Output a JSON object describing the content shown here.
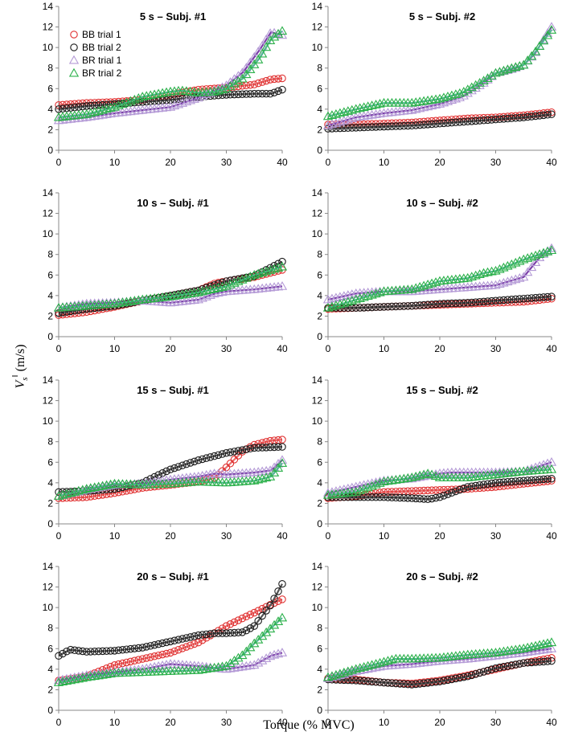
{
  "chart_data": {
    "type": "scatter",
    "xlabel": "Torque (% MVC)",
    "ylabel": "V_s^‖ (m/s)",
    "ylabel_main": "V",
    "ylabel_sub": "s",
    "ylabel_sup": "‖",
    "ylabel_unit": "(m/s)",
    "xlim": [
      0,
      40
    ],
    "ylim": [
      0,
      14
    ],
    "xticks": [
      "0",
      "10",
      "20",
      "30",
      "40"
    ],
    "yticks": [
      "0",
      "2",
      "4",
      "6",
      "8",
      "10",
      "12",
      "14"
    ],
    "legend": [
      {
        "label": "BB trial 1",
        "marker": "circle",
        "color": "#e03030"
      },
      {
        "label": "BB trial 2",
        "marker": "circle",
        "color": "#1a1a1a"
      },
      {
        "label": "BR trial 1",
        "marker": "triangle",
        "color": "#b49ad6"
      },
      {
        "label": "BR trial 2",
        "marker": "triangle",
        "color": "#2bb04a"
      }
    ],
    "series_styles": [
      {
        "name": "BB trial 1",
        "marker": "circle",
        "color": "#e03030",
        "line": "#e87070"
      },
      {
        "name": "BB trial 2",
        "marker": "circle",
        "color": "#1a1a1a",
        "line": "#555555"
      },
      {
        "name": "BR trial 1",
        "marker": "triangle",
        "color": "#b49ad6",
        "line": "#7b3fa8"
      },
      {
        "name": "BR trial 2",
        "marker": "triangle",
        "color": "#2bb04a",
        "line": "#50b890"
      }
    ],
    "panels": [
      {
        "title": "5 s – Subj. #1",
        "series": [
          {
            "name": "BB trial 1",
            "x": [
              0,
              5,
              10,
              15,
              20,
              25,
              30,
              35,
              38,
              40
            ],
            "y": [
              4.4,
              4.6,
              4.7,
              4.9,
              5.4,
              5.9,
              6.1,
              6.4,
              6.9,
              7.0
            ]
          },
          {
            "name": "BB trial 2",
            "x": [
              0,
              5,
              10,
              15,
              20,
              25,
              30,
              35,
              38,
              40
            ],
            "y": [
              4.0,
              4.3,
              4.5,
              4.7,
              4.9,
              5.2,
              5.4,
              5.5,
              5.5,
              5.9
            ]
          },
          {
            "name": "BR trial 1",
            "x": [
              0,
              5,
              10,
              15,
              20,
              25,
              28,
              30,
              33,
              36,
              38,
              40
            ],
            "y": [
              2.9,
              3.2,
              3.6,
              3.9,
              4.2,
              5.1,
              5.8,
              6.3,
              7.6,
              9.8,
              11.5,
              11.2
            ]
          },
          {
            "name": "BR trial 2",
            "x": [
              0,
              5,
              10,
              15,
              20,
              22,
              25,
              28,
              30,
              33,
              36,
              38,
              40
            ],
            "y": [
              3.2,
              3.5,
              4.2,
              5.2,
              5.7,
              5.8,
              5.6,
              5.7,
              6.0,
              7.0,
              9.0,
              10.8,
              11.6
            ]
          }
        ]
      },
      {
        "title": "5 s – Subj. #2",
        "series": [
          {
            "name": "BB trial 1",
            "x": [
              0,
              5,
              10,
              15,
              20,
              25,
              30,
              35,
              40
            ],
            "y": [
              2.5,
              2.5,
              2.6,
              2.7,
              2.9,
              3.1,
              3.2,
              3.4,
              3.7
            ]
          },
          {
            "name": "BB trial 2",
            "x": [
              0,
              5,
              10,
              15,
              20,
              25,
              30,
              35,
              40
            ],
            "y": [
              2.1,
              2.2,
              2.3,
              2.4,
              2.6,
              2.8,
              3.0,
              3.2,
              3.5
            ]
          },
          {
            "name": "BR trial 1",
            "x": [
              0,
              5,
              10,
              15,
              20,
              24,
              28,
              30,
              33,
              35,
              37,
              40
            ],
            "y": [
              2.4,
              3.2,
              3.6,
              3.9,
              4.5,
              5.2,
              6.6,
              7.5,
              7.9,
              8.3,
              9.4,
              12.0
            ]
          },
          {
            "name": "BR trial 2",
            "x": [
              0,
              5,
              10,
              15,
              20,
              24,
              28,
              30,
              33,
              35,
              37,
              40
            ],
            "y": [
              3.3,
              4.0,
              4.6,
              4.6,
              5.0,
              5.6,
              6.8,
              7.5,
              8.0,
              8.3,
              9.5,
              11.7
            ]
          }
        ]
      },
      {
        "title": "10 s – Subj. #1",
        "series": [
          {
            "name": "BB trial 1",
            "x": [
              0,
              5,
              10,
              15,
              20,
              25,
              28,
              30,
              35,
              40
            ],
            "y": [
              2.1,
              2.4,
              2.9,
              3.5,
              4.0,
              4.5,
              5.2,
              5.4,
              5.8,
              6.5
            ]
          },
          {
            "name": "BB trial 2",
            "x": [
              0,
              5,
              10,
              15,
              20,
              25,
              30,
              35,
              40
            ],
            "y": [
              2.3,
              2.7,
              3.0,
              3.5,
              4.0,
              4.5,
              5.4,
              5.9,
              7.3
            ]
          },
          {
            "name": "BR trial 1",
            "x": [
              0,
              5,
              10,
              15,
              20,
              25,
              28,
              30,
              35,
              40
            ],
            "y": [
              2.8,
              3.2,
              3.3,
              3.5,
              3.3,
              3.6,
              4.2,
              4.4,
              4.6,
              4.9
            ]
          },
          {
            "name": "BR trial 2",
            "x": [
              0,
              5,
              10,
              15,
              20,
              25,
              30,
              35,
              40
            ],
            "y": [
              2.8,
              3.0,
              3.2,
              3.6,
              3.9,
              4.3,
              4.9,
              6.0,
              6.8
            ]
          }
        ]
      },
      {
        "title": "10 s – Subj. #2",
        "series": [
          {
            "name": "BB trial 1",
            "x": [
              0,
              5,
              10,
              15,
              20,
              25,
              30,
              35,
              40
            ],
            "y": [
              2.7,
              2.8,
              2.9,
              3.0,
              3.1,
              3.2,
              3.3,
              3.4,
              3.7
            ]
          },
          {
            "name": "BB trial 2",
            "x": [
              0,
              5,
              10,
              15,
              20,
              25,
              30,
              35,
              40
            ],
            "y": [
              2.8,
              2.8,
              2.9,
              3.0,
              3.2,
              3.3,
              3.5,
              3.7,
              3.9
            ]
          },
          {
            "name": "BR trial 1",
            "x": [
              0,
              5,
              10,
              15,
              20,
              25,
              30,
              35,
              38,
              40
            ],
            "y": [
              3.6,
              4.2,
              4.4,
              4.4,
              4.6,
              4.8,
              5.0,
              5.8,
              7.8,
              8.6
            ]
          },
          {
            "name": "BR trial 2",
            "x": [
              0,
              5,
              10,
              15,
              20,
              25,
              28,
              30,
              35,
              40
            ],
            "y": [
              2.8,
              3.6,
              4.4,
              4.6,
              5.4,
              5.7,
              6.2,
              6.4,
              7.5,
              8.4
            ]
          }
        ]
      },
      {
        "title": "15 s – Subj. #1",
        "series": [
          {
            "name": "BB trial 1",
            "x": [
              0,
              5,
              10,
              15,
              20,
              25,
              28,
              30,
              33,
              35,
              38,
              40
            ],
            "y": [
              2.5,
              2.6,
              3.0,
              3.5,
              3.8,
              4.1,
              4.5,
              5.5,
              7.1,
              7.7,
              8.1,
              8.2
            ]
          },
          {
            "name": "BB trial 2",
            "x": [
              0,
              5,
              10,
              15,
              18,
              20,
              25,
              30,
              35,
              40
            ],
            "y": [
              3.1,
              3.2,
              3.4,
              4.0,
              4.8,
              5.3,
              6.2,
              6.9,
              7.4,
              7.5
            ]
          },
          {
            "name": "BR trial 1",
            "x": [
              0,
              5,
              10,
              15,
              20,
              25,
              28,
              30,
              35,
              38,
              40
            ],
            "y": [
              2.7,
              3.3,
              3.8,
              3.9,
              4.3,
              4.6,
              4.9,
              4.8,
              5.0,
              5.2,
              6.2
            ]
          },
          {
            "name": "BR trial 2",
            "x": [
              0,
              5,
              10,
              15,
              20,
              25,
              30,
              35,
              38,
              40
            ],
            "y": [
              2.7,
              3.4,
              3.9,
              3.8,
              3.9,
              4.1,
              4.0,
              4.2,
              4.6,
              5.9
            ]
          }
        ]
      },
      {
        "title": "15 s – Subj. #2",
        "series": [
          {
            "name": "BB trial 1",
            "x": [
              0,
              5,
              10,
              15,
              20,
              25,
              30,
              35,
              40
            ],
            "y": [
              2.5,
              2.7,
              3.1,
              3.2,
              3.3,
              3.4,
              3.6,
              3.9,
              4.2
            ]
          },
          {
            "name": "BB trial 2",
            "x": [
              0,
              5,
              10,
              15,
              18,
              20,
              23,
              25,
              30,
              35,
              40
            ],
            "y": [
              2.6,
              2.6,
              2.6,
              2.5,
              2.4,
              2.6,
              3.2,
              3.6,
              4.0,
              4.2,
              4.4
            ]
          },
          {
            "name": "BR trial 1",
            "x": [
              0,
              5,
              10,
              15,
              20,
              22,
              25,
              30,
              35,
              40
            ],
            "y": [
              3.0,
              3.6,
              4.2,
              4.4,
              4.9,
              5.0,
              5.0,
              5.0,
              5.1,
              6.0
            ]
          },
          {
            "name": "BR trial 2",
            "x": [
              0,
              5,
              10,
              15,
              18,
              20,
              25,
              30,
              35,
              40
            ],
            "y": [
              2.8,
              3.1,
              4.1,
              4.5,
              4.9,
              4.5,
              4.5,
              4.8,
              5.1,
              5.3
            ]
          }
        ]
      },
      {
        "title": "20 s – Subj. #1",
        "series": [
          {
            "name": "BB trial 1",
            "x": [
              0,
              5,
              10,
              15,
              20,
              25,
              30,
              35,
              38,
              40
            ],
            "y": [
              2.9,
              3.3,
              4.4,
              5.0,
              5.6,
              6.6,
              8.2,
              9.5,
              10.3,
              10.8
            ]
          },
          {
            "name": "BB trial 2",
            "x": [
              0,
              2,
              5,
              10,
              15,
              20,
              25,
              28,
              30,
              33,
              35,
              38,
              40
            ],
            "y": [
              5.3,
              5.9,
              5.7,
              5.8,
              6.1,
              6.7,
              7.3,
              7.5,
              7.5,
              7.6,
              8.2,
              10.3,
              12.3
            ]
          },
          {
            "name": "BR trial 1",
            "x": [
              0,
              5,
              10,
              15,
              20,
              25,
              28,
              30,
              35,
              38,
              40
            ],
            "y": [
              2.9,
              3.4,
              3.7,
              4.0,
              4.5,
              4.3,
              4.1,
              4.0,
              4.4,
              5.3,
              5.6
            ]
          },
          {
            "name": "BR trial 2",
            "x": [
              0,
              5,
              10,
              15,
              20,
              25,
              30,
              33,
              35,
              38,
              40
            ],
            "y": [
              2.7,
              3.2,
              3.6,
              3.7,
              3.8,
              3.9,
              4.3,
              5.4,
              6.5,
              8.0,
              9.0
            ]
          }
        ]
      },
      {
        "title": "20 s – Subj. #2",
        "series": [
          {
            "name": "BB trial 1",
            "x": [
              0,
              5,
              10,
              15,
              20,
              25,
              30,
              35,
              40
            ],
            "y": [
              3.1,
              3.0,
              2.7,
              2.6,
              2.9,
              3.4,
              4.0,
              4.6,
              5.1
            ]
          },
          {
            "name": "BB trial 2",
            "x": [
              0,
              5,
              10,
              15,
              20,
              25,
              30,
              35,
              40
            ],
            "y": [
              3.0,
              2.9,
              2.7,
              2.5,
              2.8,
              3.3,
              4.1,
              4.6,
              4.8
            ]
          },
          {
            "name": "BR trial 1",
            "x": [
              0,
              5,
              10,
              15,
              20,
              25,
              30,
              35,
              40
            ],
            "y": [
              3.1,
              3.8,
              4.3,
              4.5,
              4.8,
              5.0,
              5.3,
              5.6,
              6.0
            ]
          },
          {
            "name": "BR trial 2",
            "x": [
              0,
              5,
              10,
              12,
              15,
              20,
              25,
              30,
              35,
              40
            ],
            "y": [
              3.2,
              4.0,
              4.7,
              5.0,
              5.0,
              5.1,
              5.4,
              5.6,
              6.0,
              6.6
            ]
          }
        ]
      }
    ]
  }
}
